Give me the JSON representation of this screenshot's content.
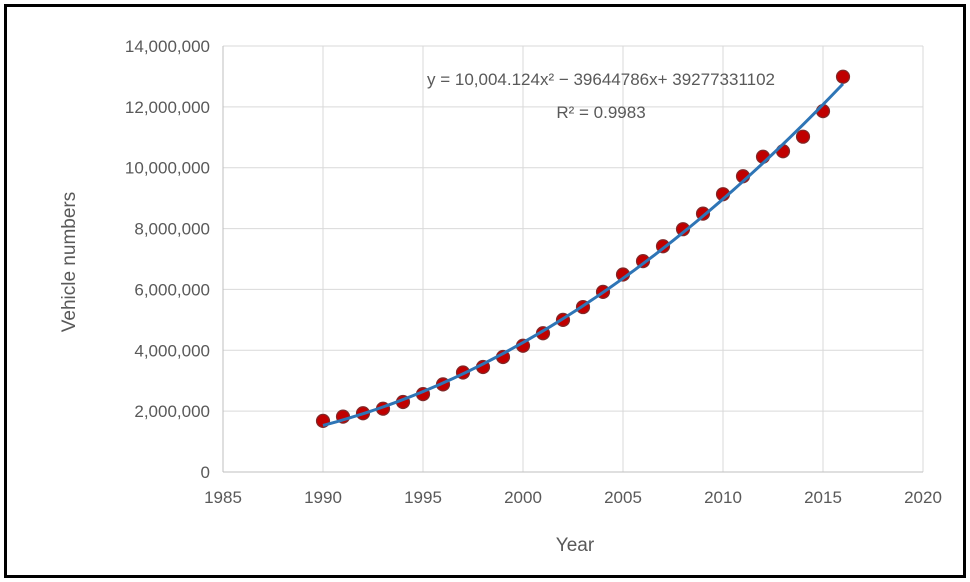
{
  "chart_data": {
    "type": "scatter",
    "title": "",
    "xlabel": "Year",
    "ylabel": "Vehicle numbers",
    "xlim": [
      1985,
      2020
    ],
    "ylim": [
      0,
      14000000
    ],
    "x_ticks": [
      1985,
      1990,
      1995,
      2000,
      2005,
      2010,
      2015,
      2020
    ],
    "x_tick_labels": [
      "1985",
      "1990",
      "1995",
      "2000",
      "2005",
      "2010",
      "2015",
      "2020"
    ],
    "y_ticks": [
      0,
      2000000,
      4000000,
      6000000,
      8000000,
      10000000,
      12000000,
      14000000
    ],
    "y_tick_labels": [
      "0",
      "2,000,000",
      "4,000,000",
      "6,000,000",
      "8,000,000",
      "10,000,000",
      "12,000,000",
      "14,000,000"
    ],
    "grid": true,
    "legend": "none",
    "colors": {
      "marker_fill": "#c00000",
      "marker_edge": "#7f2a2a",
      "trend_line": "#2e75b6",
      "grid": "#d9d9d9",
      "text": "#595959"
    },
    "series": [
      {
        "x": [
          1990,
          1991,
          1992,
          1993,
          1994,
          1995,
          1996,
          1997,
          1998,
          1999,
          2000,
          2001,
          2002,
          2003,
          2004,
          2005,
          2006,
          2007,
          2008,
          2009,
          2010,
          2011,
          2012,
          2013,
          2014,
          2015,
          2016
        ],
        "y": [
          1680000,
          1820000,
          1930000,
          2080000,
          2300000,
          2560000,
          2880000,
          3270000,
          3450000,
          3780000,
          4150000,
          4560000,
          5000000,
          5420000,
          5920000,
          6490000,
          6930000,
          7420000,
          7980000,
          8490000,
          9130000,
          9720000,
          10360000,
          10540000,
          11020000,
          11860000,
          12990000
        ]
      }
    ],
    "trendline": {
      "type": "polynomial",
      "coefficients": [
        39277331102,
        -39644786,
        10004.124
      ],
      "equation_label": "y = 10,004.124x² − 39644786x+ 39277331102",
      "r2_label": "R² = 0.9983"
    }
  }
}
